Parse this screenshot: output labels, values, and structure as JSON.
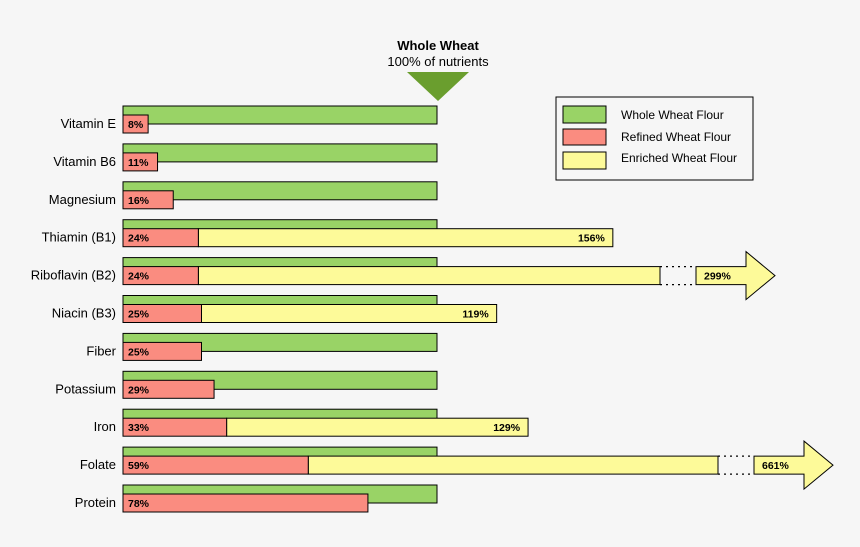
{
  "chart_data": {
    "type": "bar",
    "title": "Whole Wheat",
    "subtitle": "100% of nutrients",
    "categories": [
      "Vitamin E",
      "Vitamin B6",
      "Magnesium",
      "Thiamin (B1)",
      "Riboflavin (B2)",
      "Niacin (B3)",
      "Fiber",
      "Potassium",
      "Iron",
      "Folate",
      "Protein"
    ],
    "series": [
      {
        "name": "Whole Wheat Flour",
        "values": [
          100,
          100,
          100,
          100,
          100,
          100,
          100,
          100,
          100,
          100,
          100
        ]
      },
      {
        "name": "Refined Wheat Flour",
        "values": [
          8,
          11,
          16,
          24,
          24,
          25,
          25,
          29,
          33,
          59,
          78
        ]
      },
      {
        "name": "Enriched Wheat Flour",
        "values": [
          null,
          null,
          null,
          156,
          299,
          119,
          null,
          null,
          129,
          661,
          null
        ]
      }
    ],
    "value_labels": {
      "refined": [
        "8%",
        "11%",
        "16%",
        "24%",
        "24%",
        "25%",
        "25%",
        "29%",
        "33%",
        "59%",
        "78%"
      ],
      "enriched": [
        null,
        null,
        null,
        "156%",
        "299%",
        "119%",
        null,
        null,
        "129%",
        "661%",
        null
      ]
    },
    "legend": {
      "position": "top-right"
    },
    "colors": {
      "whole": "#99d366",
      "refined": "#fa8c80",
      "enriched": "#fdfa99",
      "marker": "#6a9e2e",
      "stroke": "#000000",
      "background": "#f6f6f6"
    }
  }
}
